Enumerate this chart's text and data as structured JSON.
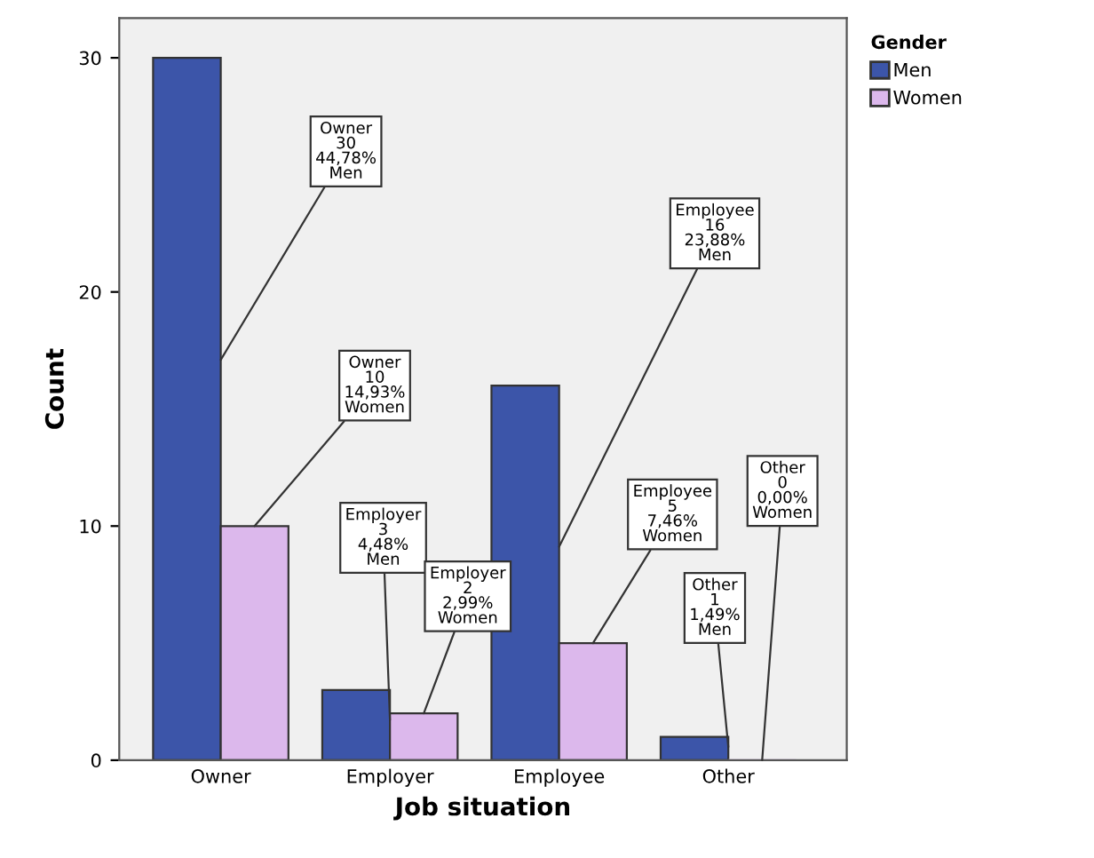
{
  "chart_data": {
    "type": "bar",
    "xlabel": "Job situation",
    "ylabel": "Count",
    "legend_title": "Gender",
    "legend": "right",
    "categories": [
      "Owner",
      "Employer",
      "Employee",
      "Other"
    ],
    "series": [
      {
        "name": "Men",
        "color": "#3c55a9",
        "values": [
          30,
          3,
          16,
          1
        ],
        "value_labels": [
          "Owner\n30\n44,78%\nMen",
          "Employer\n3\n4,48%\nMen",
          "Employee\n16\n23,88%\nMen",
          "Other\n1\n1,49%\nMen"
        ]
      },
      {
        "name": "Women",
        "color": "#dcb8ec",
        "values": [
          10,
          2,
          5,
          0
        ],
        "value_labels": [
          "Owner\n10\n14,93%\nWomen",
          "Employer\n2\n2,99%\nWomen",
          "Employee\n5\n7,46%\nWomen",
          "Other\n0\n0,00%\nWomen"
        ]
      }
    ],
    "ylim": [
      0,
      31.7
    ],
    "yticks": [
      0,
      10,
      20,
      30
    ],
    "grid": false
  }
}
